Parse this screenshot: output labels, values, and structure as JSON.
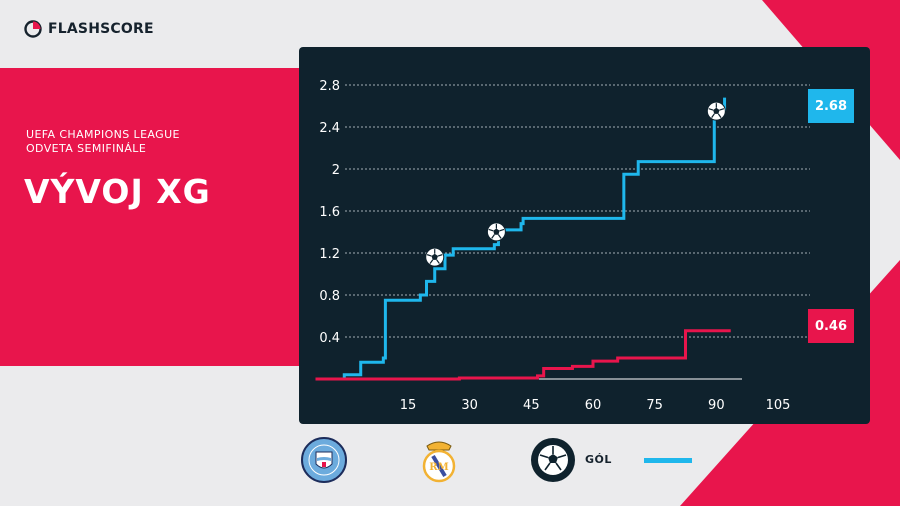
{
  "header": {
    "brand": "FLASHSCORE"
  },
  "info": {
    "competition_line1": "UEFA CHAMPIONS LEAGUE",
    "competition_line2": "ODVETA SEMIFINÁLE",
    "title": "VÝVOJ XG"
  },
  "colors": {
    "home": "#1fb7ec",
    "away": "#e8154c",
    "panel": "#0f222d",
    "background": "#ebebed"
  },
  "chart_data": {
    "type": "line",
    "step": true,
    "xlabel": "",
    "ylabel": "",
    "xlim": [
      -7.5,
      105
    ],
    "ylim": [
      0,
      2.8
    ],
    "x_ticks": [
      15,
      30,
      45,
      60,
      75,
      90,
      105
    ],
    "y_ticks": [
      0.4,
      0.8,
      1.2,
      1.6,
      2,
      2.4,
      2.8
    ],
    "y_tick_labels": [
      "0.4",
      "0.8",
      "1.2",
      "1.6",
      "2",
      "2.4",
      "2.8"
    ],
    "grid": true,
    "series": [
      {
        "team": "home",
        "final_label": "2.68",
        "points": [
          [
            -4,
            0
          ],
          [
            -0.5,
            0.04
          ],
          [
            3.5,
            0.16
          ],
          [
            9,
            0.2
          ],
          [
            9.5,
            0.75
          ],
          [
            15,
            0.75
          ],
          [
            18,
            0.8
          ],
          [
            19.5,
            0.93
          ],
          [
            21.5,
            1.05
          ],
          [
            24,
            1.18
          ],
          [
            26,
            1.24
          ],
          [
            34,
            1.24
          ],
          [
            36,
            1.28
          ],
          [
            37,
            1.42
          ],
          [
            40.5,
            1.42
          ],
          [
            42.5,
            1.48
          ],
          [
            43,
            1.53
          ],
          [
            53.5,
            1.53
          ],
          [
            66,
            1.53
          ],
          [
            67.5,
            1.95
          ],
          [
            71,
            2.07
          ],
          [
            82,
            2.07
          ],
          [
            89.5,
            2.57
          ],
          [
            92,
            2.68
          ]
        ]
      },
      {
        "team": "away",
        "final_label": "0.46",
        "points": [
          [
            -7.5,
            0
          ],
          [
            15,
            0
          ],
          [
            27.5,
            0.01
          ],
          [
            46.5,
            0.03
          ],
          [
            48,
            0.1
          ],
          [
            55,
            0.12
          ],
          [
            60,
            0.17
          ],
          [
            66,
            0.2
          ],
          [
            82.5,
            0.2
          ],
          [
            82.5,
            0.46
          ],
          [
            93.5,
            0.46
          ]
        ]
      }
    ],
    "goals": [
      {
        "team": "home",
        "minute": 21.5,
        "xg": 1.18
      },
      {
        "team": "home",
        "minute": 36.5,
        "xg": 1.42
      },
      {
        "team": "home",
        "minute": 90,
        "xg": 2.57
      }
    ]
  },
  "legend": {
    "home_crest_text": "MANCHESTER CITY",
    "goal_label": "GÓL"
  }
}
